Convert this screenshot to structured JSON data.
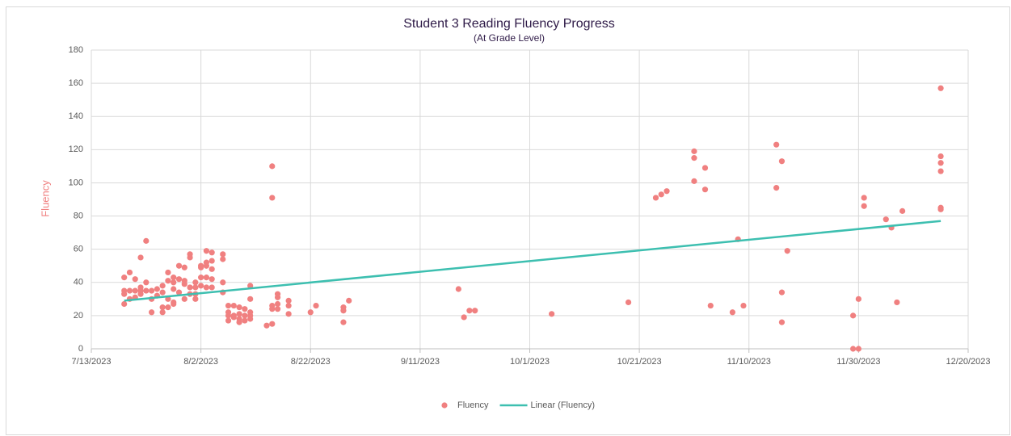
{
  "chart_data": {
    "type": "scatter",
    "title": "Student 3 Reading Fluency Progress",
    "subtitle": "(At Grade Level)",
    "y_label": "Fluency",
    "xlim": [
      "7/13/2023",
      "12/20/2023"
    ],
    "xticks": [
      "7/13/2023",
      "8/2/2023",
      "8/22/2023",
      "9/11/2023",
      "10/1/2023",
      "10/21/2023",
      "11/10/2023",
      "11/30/2023",
      "12/20/2023"
    ],
    "ylim": [
      0,
      180
    ],
    "yticks": [
      0,
      20,
      40,
      60,
      80,
      100,
      120,
      140,
      160,
      180
    ],
    "grid": true,
    "legend": "bottom",
    "series": [
      {
        "name": "Fluency",
        "color": "#f08080",
        "x": [
          "7/19/2023",
          "7/19/2023",
          "7/19/2023",
          "7/19/2023",
          "7/20/2023",
          "7/20/2023",
          "7/20/2023",
          "7/21/2023",
          "7/21/2023",
          "7/21/2023",
          "7/22/2023",
          "7/22/2023",
          "7/22/2023",
          "7/22/2023",
          "7/23/2023",
          "7/23/2023",
          "7/23/2023",
          "7/24/2023",
          "7/24/2023",
          "7/24/2023",
          "7/25/2023",
          "7/25/2023",
          "7/26/2023",
          "7/26/2023",
          "7/26/2023",
          "7/26/2023",
          "7/27/2023",
          "7/27/2023",
          "7/27/2023",
          "7/27/2023",
          "7/28/2023",
          "7/28/2023",
          "7/28/2023",
          "7/28/2023",
          "7/28/2023",
          "7/29/2023",
          "7/29/2023",
          "7/29/2023",
          "7/30/2023",
          "7/30/2023",
          "7/30/2023",
          "7/30/2023",
          "7/31/2023",
          "7/31/2023",
          "7/31/2023",
          "7/31/2023",
          "8/1/2023",
          "8/1/2023",
          "8/1/2023",
          "8/1/2023",
          "8/2/2023",
          "8/2/2023",
          "8/2/2023",
          "8/2/2023",
          "8/3/2023",
          "8/3/2023",
          "8/3/2023",
          "8/3/2023",
          "8/3/2023",
          "8/4/2023",
          "8/4/2023",
          "8/4/2023",
          "8/4/2023",
          "8/4/2023",
          "8/6/2023",
          "8/6/2023",
          "8/6/2023",
          "8/6/2023",
          "8/7/2023",
          "8/7/2023",
          "8/7/2023",
          "8/7/2023",
          "8/8/2023",
          "8/8/2023",
          "8/8/2023",
          "8/9/2023",
          "8/9/2023",
          "8/9/2023",
          "8/9/2023",
          "8/10/2023",
          "8/10/2023",
          "8/10/2023",
          "8/11/2023",
          "8/11/2023",
          "8/11/2023",
          "8/11/2023",
          "8/11/2023",
          "8/14/2023",
          "8/15/2023",
          "8/15/2023",
          "8/15/2023",
          "8/15/2023",
          "8/15/2023",
          "8/16/2023",
          "8/16/2023",
          "8/16/2023",
          "8/16/2023",
          "8/18/2023",
          "8/18/2023",
          "8/18/2023",
          "8/22/2023",
          "8/23/2023",
          "8/28/2023",
          "8/28/2023",
          "8/28/2023",
          "8/29/2023",
          "9/18/2023",
          "9/19/2023",
          "9/20/2023",
          "9/21/2023",
          "10/5/2023",
          "10/19/2023",
          "10/24/2023",
          "10/25/2023",
          "10/26/2023",
          "10/31/2023",
          "10/31/2023",
          "10/31/2023",
          "11/2/2023",
          "11/2/2023",
          "11/3/2023",
          "11/7/2023",
          "11/8/2023",
          "11/9/2023",
          "11/15/2023",
          "11/15/2023",
          "11/16/2023",
          "11/16/2023",
          "11/16/2023",
          "11/17/2023",
          "11/29/2023",
          "11/29/2023",
          "11/30/2023",
          "11/30/2023",
          "12/1/2023",
          "12/1/2023",
          "12/5/2023",
          "12/6/2023",
          "12/7/2023",
          "12/8/2023",
          "12/15/2023",
          "12/15/2023",
          "12/15/2023",
          "12/15/2023",
          "12/15/2023",
          "12/15/2023"
        ],
        "values": [
          43,
          35,
          33,
          27,
          46,
          35,
          30,
          42,
          35,
          31,
          55,
          37,
          35,
          33,
          65,
          40,
          35,
          30,
          22,
          35,
          36,
          32,
          38,
          34,
          25,
          22,
          46,
          41,
          30,
          25,
          43,
          40,
          36,
          28,
          27,
          50,
          42,
          34,
          49,
          41,
          39,
          30,
          57,
          55,
          37,
          33,
          40,
          37,
          33,
          30,
          50,
          49,
          43,
          38,
          59,
          52,
          50,
          43,
          37,
          58,
          53,
          48,
          42,
          37,
          57,
          54,
          40,
          34,
          26,
          22,
          20,
          17,
          26,
          20,
          19,
          25,
          21,
          18,
          16,
          24,
          20,
          17,
          38,
          30,
          22,
          20,
          18,
          14,
          110,
          91,
          26,
          24,
          15,
          33,
          31,
          27,
          24,
          29,
          26,
          21,
          22,
          26,
          25,
          23,
          16,
          29,
          36,
          19,
          23,
          23,
          21,
          28,
          91,
          93,
          95,
          119,
          115,
          101,
          109,
          96,
          26,
          22,
          66,
          26,
          123,
          97,
          113,
          34,
          16,
          59,
          20,
          0,
          30,
          0,
          91,
          86,
          78,
          73,
          28,
          83,
          157,
          116,
          112,
          107,
          85,
          84
        ]
      },
      {
        "name": "Linear (Fluency)",
        "color": "#3dbfb0",
        "x": [
          "7/19/2023",
          "12/15/2023"
        ],
        "values": [
          29,
          77
        ]
      }
    ]
  }
}
